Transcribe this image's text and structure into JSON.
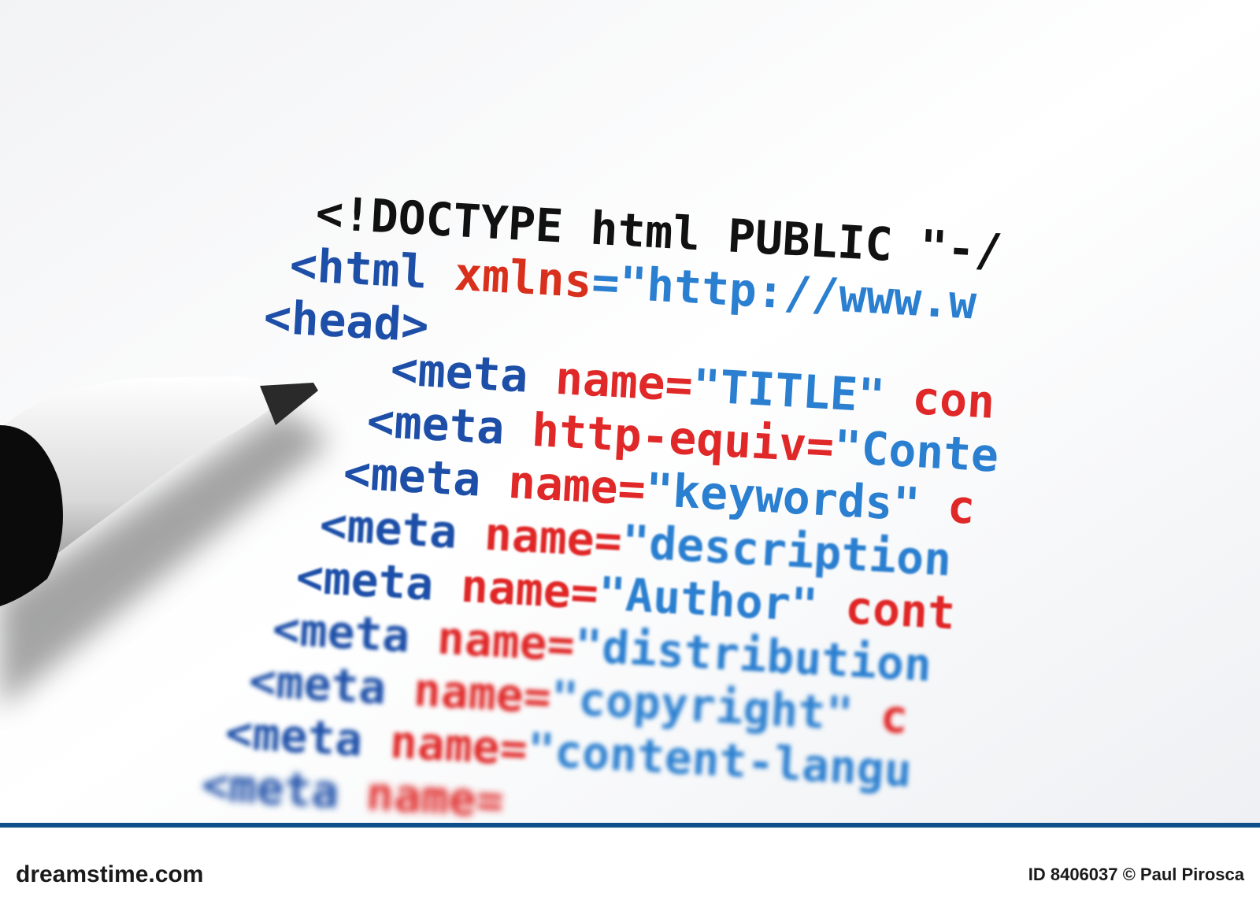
{
  "code_lines": [
    {
      "tokens": [
        {
          "text": "<!DOCTYPE html PUBLIC \"-/",
          "color": "#111111"
        }
      ]
    },
    {
      "tokens": [
        {
          "text": "<html",
          "color": "#1e4fa8"
        },
        {
          "text": " xmlns",
          "color": "#d8301c"
        },
        {
          "text": "=\"http://www.w",
          "color": "#2a7fd0"
        }
      ]
    },
    {
      "tokens": [
        {
          "text": "<head>",
          "color": "#1e4fa8"
        }
      ]
    },
    {
      "tokens": [
        {
          "text": "<meta",
          "color": "#1e4fa8"
        },
        {
          "text": " name=",
          "color": "#e02828"
        },
        {
          "text": "\"TITLE\"",
          "color": "#2a7fd0"
        },
        {
          "text": " con",
          "color": "#e02828"
        }
      ]
    },
    {
      "tokens": [
        {
          "text": "<meta",
          "color": "#1e4fa8"
        },
        {
          "text": " http-equiv=",
          "color": "#e02828"
        },
        {
          "text": "\"Conte",
          "color": "#2a7fd0"
        }
      ]
    },
    {
      "tokens": [
        {
          "text": "<meta",
          "color": "#1e4fa8"
        },
        {
          "text": " name=",
          "color": "#e02828"
        },
        {
          "text": "\"keywords\"",
          "color": "#2a7fd0"
        },
        {
          "text": " c",
          "color": "#e02828"
        }
      ]
    },
    {
      "tokens": [
        {
          "text": "<meta",
          "color": "#1e4fa8"
        },
        {
          "text": " name=",
          "color": "#e02828"
        },
        {
          "text": "\"description",
          "color": "#2a7fd0"
        }
      ]
    },
    {
      "tokens": [
        {
          "text": "<meta",
          "color": "#1e4fa8"
        },
        {
          "text": " name=",
          "color": "#e02828"
        },
        {
          "text": "\"Author\"",
          "color": "#2a7fd0"
        },
        {
          "text": " cont",
          "color": "#e02828"
        }
      ]
    },
    {
      "tokens": [
        {
          "text": "<meta",
          "color": "#1e4fa8"
        },
        {
          "text": " name=",
          "color": "#e02828"
        },
        {
          "text": "\"distribution",
          "color": "#2a7fd0"
        }
      ]
    },
    {
      "tokens": [
        {
          "text": "<meta",
          "color": "#1e4fa8"
        },
        {
          "text": " name=",
          "color": "#e02828"
        },
        {
          "text": "\"copyright\"",
          "color": "#2a7fd0"
        },
        {
          "text": " c",
          "color": "#e02828"
        }
      ]
    },
    {
      "tokens": [
        {
          "text": "<meta",
          "color": "#1e4fa8"
        },
        {
          "text": " name=",
          "color": "#e02828"
        },
        {
          "text": "\"content-langu",
          "color": "#2a7fd0"
        }
      ]
    },
    {
      "tokens": [
        {
          "text": "<meta",
          "color": "#1e4fa8"
        },
        {
          "text": " name=",
          "color": "#e02828"
        }
      ]
    }
  ],
  "footer": {
    "site": "dreamstime.com",
    "credit": "ID 8406037 © Paul Pirosca"
  }
}
